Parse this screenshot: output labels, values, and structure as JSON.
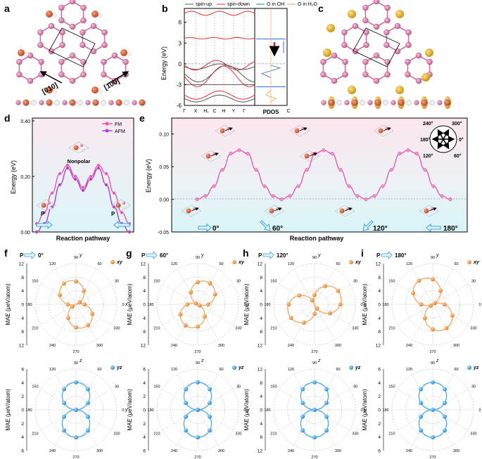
{
  "panel_labels": {
    "a": "a",
    "b": "b",
    "c": "c",
    "d": "d",
    "e": "e",
    "f": "f",
    "g": "g",
    "h": "h",
    "i": "i"
  },
  "panel_a": {
    "dir1": "[010]",
    "dir2": "[100]"
  },
  "panel_b": {
    "legend": [
      "spin-up",
      "spin-down",
      "O in OH",
      "O in H₂O"
    ],
    "ylabel": "Energy (eV)",
    "yticks": [
      "6",
      "3",
      "0",
      "-3",
      "-6"
    ],
    "kpoints": [
      "Γ",
      "X",
      "H₁",
      "C",
      "H",
      "Y",
      "Γ",
      "C"
    ],
    "pdos_label": "PDOS",
    "colors": {
      "up": "#555555",
      "down": "#e03030",
      "oh": "#2a6fd6",
      "h2o": "#f0a050"
    }
  },
  "panel_d": {
    "legend": [
      "FM",
      "AFM"
    ],
    "ylabel": "Energy (eV)",
    "xlabel": "Reaction pathway",
    "yticks": [
      "0.00",
      "0.20",
      "0.40"
    ],
    "annot_nonpolar": "Nonpolar",
    "annot_p": "P",
    "colors": {
      "fm": "#ee55aa",
      "afm": "#b040d0"
    }
  },
  "panel_e": {
    "ylabel": "Energy (eV)",
    "xlabel": "Reaction pathway",
    "yticks": [
      "0.10",
      "0.05",
      "0.00",
      "-0.05"
    ],
    "angles": [
      "0°",
      "60°",
      "120°",
      "180°"
    ],
    "compass": [
      "240°",
      "300°",
      "180°",
      "0°",
      "120°",
      "60°"
    ]
  },
  "mae": {
    "ylabel": "MAE (μeV/atom)",
    "ticks_top": [
      "12",
      "8",
      "4",
      "0",
      "4",
      "8",
      "12"
    ],
    "ticks_bottom": [
      "6",
      "4",
      "2",
      "0",
      "2",
      "4",
      "6"
    ],
    "ticks_bottom_i": [
      "6",
      "4",
      "2",
      "0",
      "2",
      "4",
      "6"
    ],
    "ticks_bottom_h": [
      "12",
      "8",
      "4",
      "0",
      "4",
      "8",
      "12"
    ],
    "angle_labels": [
      "90",
      "60",
      "30",
      "0",
      "330",
      "300",
      "270",
      "240",
      "210",
      "180",
      "150",
      "120"
    ],
    "xy_label": "xy",
    "yz_label": "yz",
    "axis_y": "y",
    "axis_x": "x",
    "axis_z": "z",
    "panels": [
      {
        "id": "f",
        "angle": "0°",
        "p": "P"
      },
      {
        "id": "g",
        "angle": "60°",
        "p": "P"
      },
      {
        "id": "h",
        "angle": "120°",
        "p": "P"
      },
      {
        "id": "i",
        "angle": "180°",
        "p": "P"
      }
    ],
    "colors": {
      "xy": "#f0a050",
      "yz": "#3aa0e0"
    }
  },
  "chart_data": [
    {
      "type": "line",
      "panel": "d",
      "title": "",
      "xlabel": "Reaction pathway",
      "ylabel": "Energy (eV)",
      "ylim": [
        0,
        0.4
      ],
      "x": [
        0,
        1,
        2,
        3,
        4,
        5,
        6,
        7,
        8,
        9,
        10,
        11,
        12
      ],
      "series": [
        {
          "name": "FM",
          "values": [
            0.03,
            0.07,
            0.14,
            0.21,
            0.24,
            0.2,
            0.16,
            0.2,
            0.24,
            0.21,
            0.14,
            0.07,
            0.03
          ]
        },
        {
          "name": "AFM",
          "values": [
            0.0,
            0.03,
            0.09,
            0.17,
            0.23,
            0.19,
            0.15,
            0.19,
            0.23,
            0.17,
            0.09,
            0.03,
            0.0
          ]
        }
      ]
    },
    {
      "type": "line",
      "panel": "e",
      "title": "",
      "xlabel": "Reaction pathway",
      "ylabel": "Energy (eV)",
      "ylim": [
        -0.05,
        0.12
      ],
      "x": [
        0,
        1,
        2,
        3,
        4,
        5,
        6,
        7,
        8,
        9,
        10,
        11,
        12,
        13,
        14,
        15,
        16,
        17,
        18,
        19,
        20,
        21,
        22,
        23,
        24,
        25,
        26,
        27,
        28,
        29,
        30
      ],
      "series": [
        {
          "name": "",
          "values": [
            0.0,
            0.005,
            0.02,
            0.045,
            0.07,
            0.075,
            0.07,
            0.045,
            0.02,
            0.005,
            0.0,
            0.005,
            0.02,
            0.045,
            0.07,
            0.075,
            0.07,
            0.045,
            0.02,
            0.005,
            0.0,
            0.005,
            0.02,
            0.045,
            0.07,
            0.075,
            0.07,
            0.045,
            0.02,
            0.005,
            0.0
          ]
        }
      ]
    },
    {
      "type": "scatter",
      "panel": "f-i polar",
      "series": [
        {
          "name": "xy f (0°)",
          "lobe_angle_deg": 110,
          "amplitude": 8
        },
        {
          "name": "xy g (60°)",
          "lobe_angle_deg": 65,
          "amplitude": 8
        },
        {
          "name": "xy h (120°)",
          "lobe_angle_deg": 20,
          "amplitude": 9
        },
        {
          "name": "xy i (180°)",
          "lobe_angle_deg": 115,
          "amplitude": 9
        },
        {
          "name": "yz f",
          "lobe_angle_deg": 90,
          "amplitude": 4.5
        },
        {
          "name": "yz g",
          "lobe_angle_deg": 90,
          "amplitude": 4.5
        },
        {
          "name": "yz h",
          "lobe_angle_deg": 90,
          "amplitude": 9
        },
        {
          "name": "yz i",
          "lobe_angle_deg": 90,
          "amplitude": 4.5
        }
      ]
    }
  ]
}
